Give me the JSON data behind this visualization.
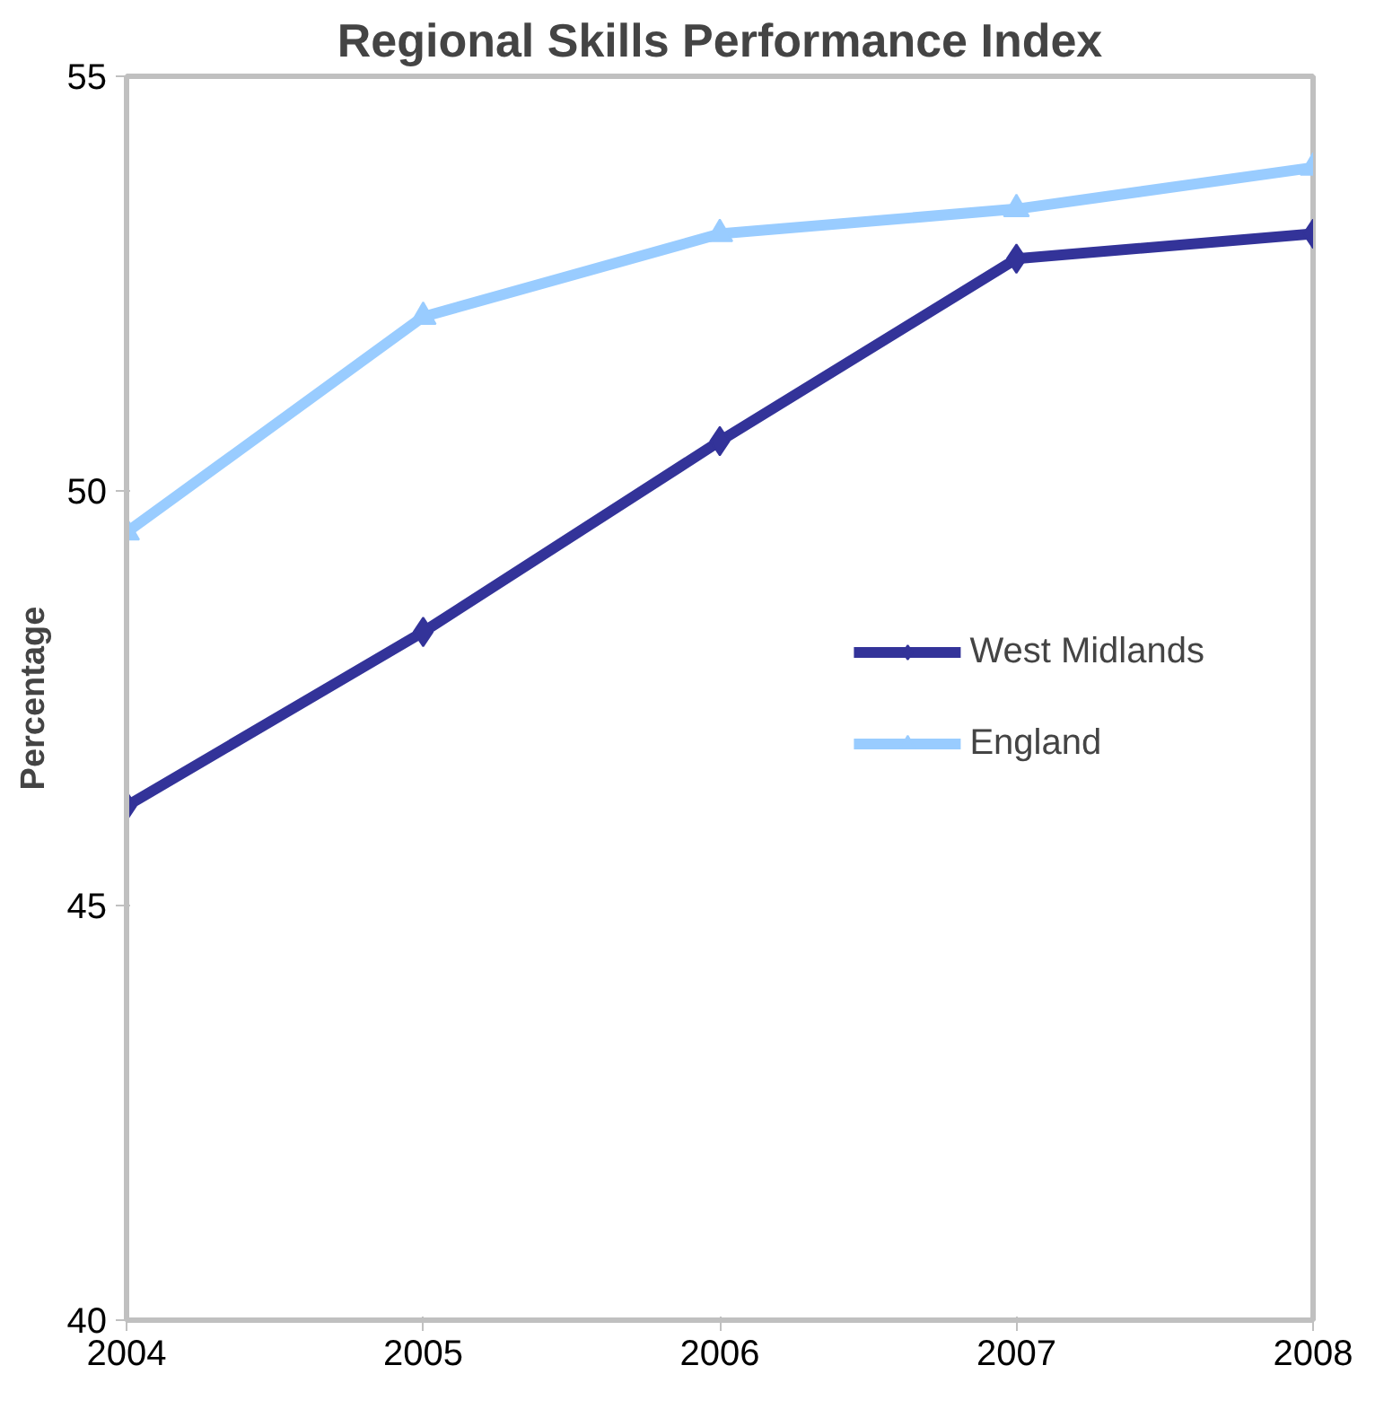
{
  "chart_data": {
    "type": "line",
    "title": "Regional Skills Performance Index",
    "ylabel": "Percentage",
    "x": [
      2004,
      2005,
      2006,
      2007,
      2008
    ],
    "series": [
      {
        "name": "West Midlands",
        "color": "#333399",
        "marker": "diamond",
        "values": [
          46.2,
          48.3,
          50.6,
          52.8,
          53.1
        ]
      },
      {
        "name": "England",
        "color": "#99ccff",
        "marker": "triangle",
        "values": [
          49.5,
          52.1,
          53.1,
          53.4,
          53.9
        ]
      }
    ],
    "xlim": [
      2004,
      2008
    ],
    "xticks": [
      2004,
      2005,
      2006,
      2007,
      2008
    ],
    "ylim": [
      40,
      55
    ],
    "yticks": [
      40,
      45,
      50,
      55
    ],
    "grid": false,
    "legend": "right",
    "line_style": "solid"
  }
}
